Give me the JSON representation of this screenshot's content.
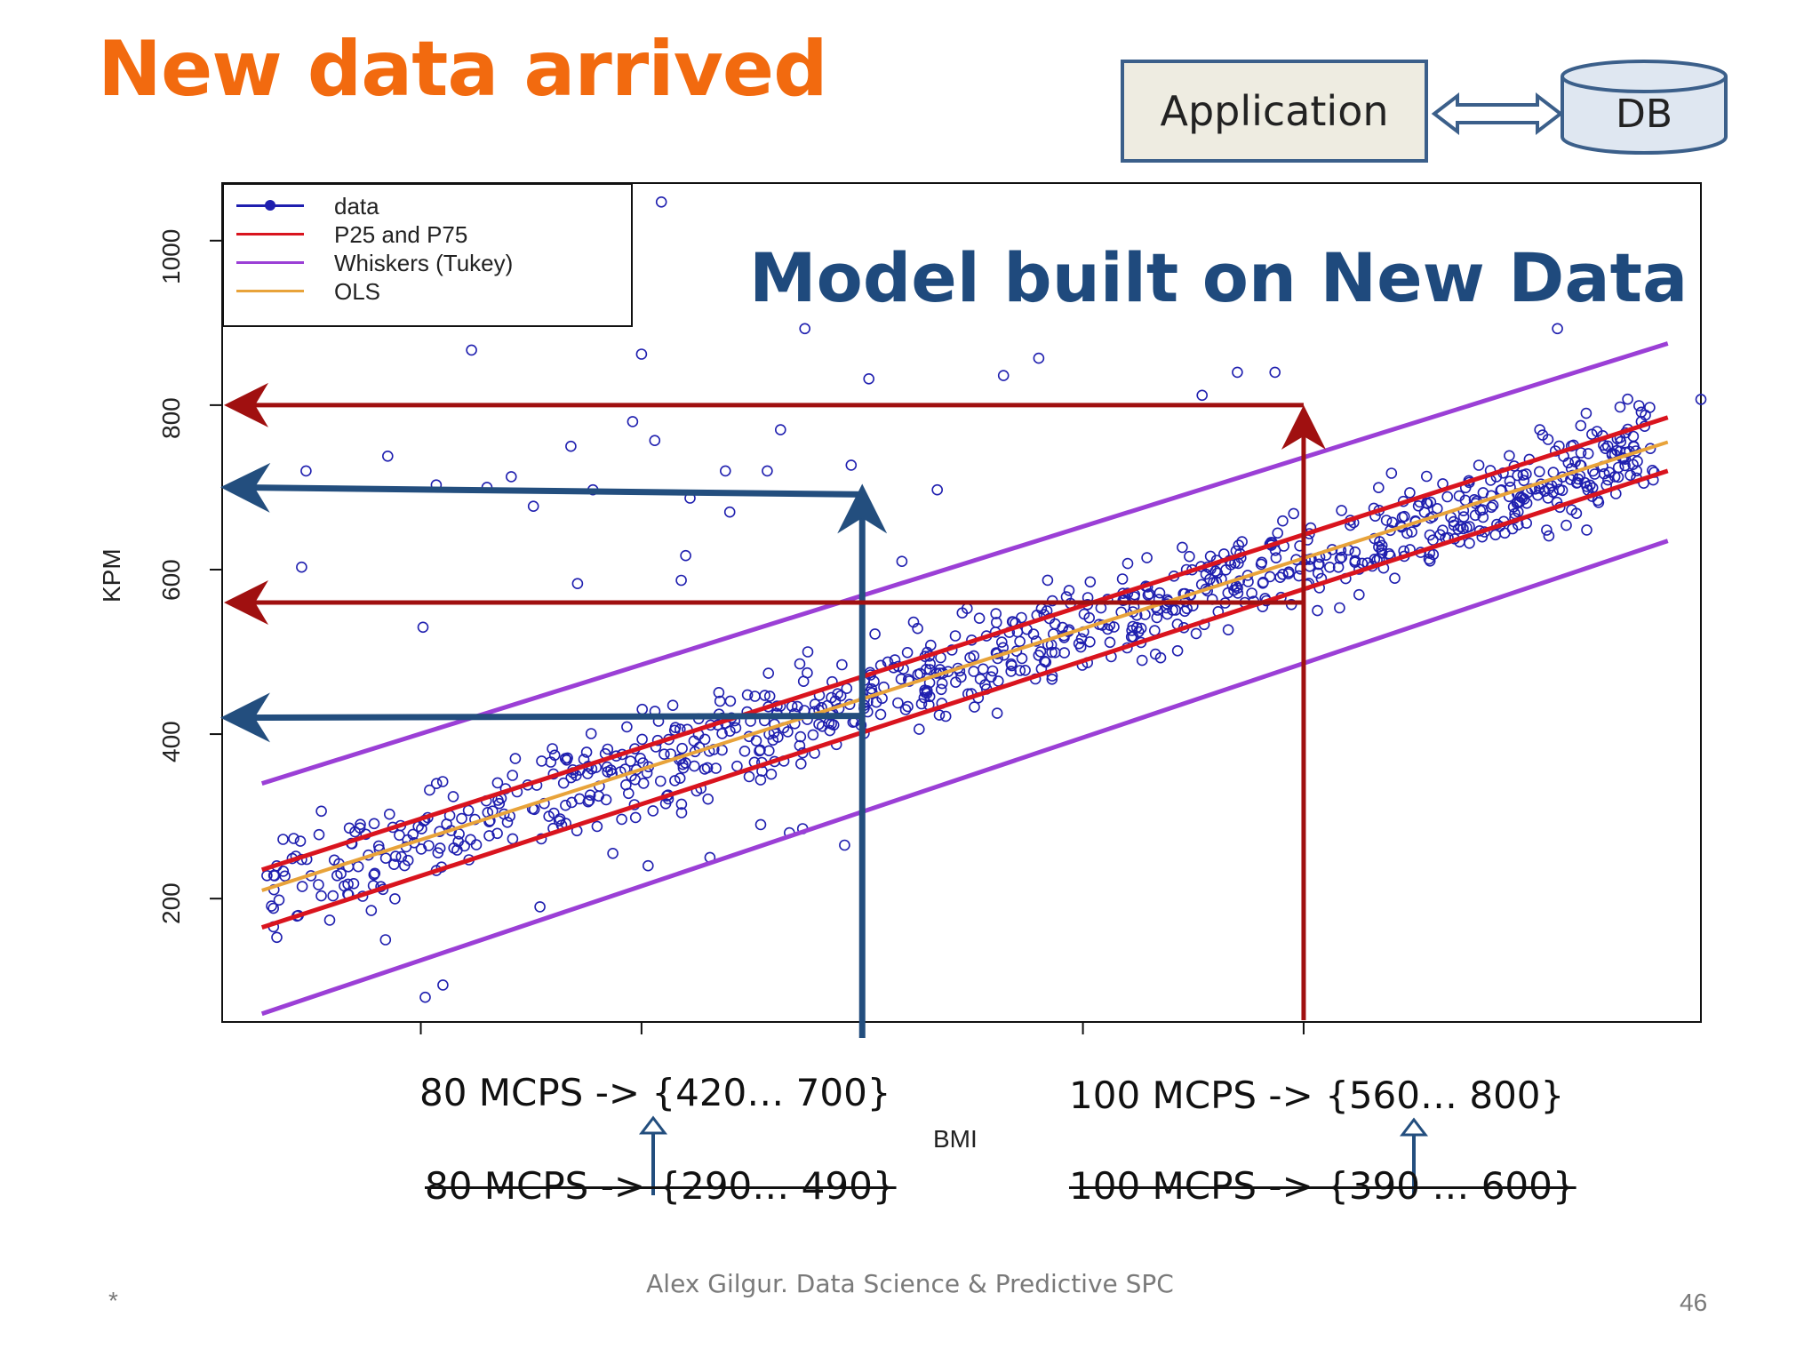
{
  "slide": {
    "title": "New data arrived",
    "overlay_title": "Model built on New Data",
    "footer": "Alex Gilgur.  Data Science & Predictive SPC",
    "page_number": "46",
    "star": "*"
  },
  "diagram": {
    "application_label": "Application",
    "db_label": "DB"
  },
  "annotations": {
    "new_80": "80 MCPS -> {420… 700}",
    "new_100": "100 MCPS -> {560… 800}",
    "old_80": "80 MCPS -> {290… 490}",
    "old_100": "100 MCPS -> {390 … 600}"
  },
  "colors": {
    "title": "#f26a0f",
    "points": "#1f1faf",
    "quartile_lines": "#d9141e",
    "whiskers": "#9b3fd6",
    "ols": "#e8a33a",
    "red_arrows": "#a01010",
    "blue_arrows": "#234e7e"
  },
  "chart_data": {
    "type": "scatter",
    "title": "",
    "xlabel": "BMI",
    "ylabel": "KPM",
    "xlim": [
      51,
      118
    ],
    "ylim": [
      50,
      1070
    ],
    "y_ticks": [
      200,
      400,
      600,
      800,
      1000
    ],
    "x_ticks": [
      60,
      70,
      80,
      90,
      100
    ],
    "x_tick_labels_visible": false,
    "legend": [
      {
        "name": "data",
        "color": "#1f1faf",
        "marker": "circle"
      },
      {
        "name": "P25 and P75",
        "color": "#d9141e"
      },
      {
        "name": "Whiskers (Tukey)",
        "color": "#9b3fd6"
      },
      {
        "name": "OLS",
        "color": "#e8a33a"
      }
    ],
    "lines": [
      {
        "name": "P75",
        "color": "#d9141e",
        "x": [
          52.8,
          116.5
        ],
        "y": [
          235,
          785
        ]
      },
      {
        "name": "P25",
        "color": "#d9141e",
        "x": [
          52.8,
          116.5
        ],
        "y": [
          165,
          720
        ]
      },
      {
        "name": "Whisker upper",
        "color": "#9b3fd6",
        "x": [
          52.8,
          116.5
        ],
        "y": [
          340,
          875
        ]
      },
      {
        "name": "Whisker lower",
        "color": "#9b3fd6",
        "x": [
          52.8,
          116.5
        ],
        "y": [
          60,
          635
        ]
      },
      {
        "name": "OLS",
        "color": "#e8a33a",
        "x": [
          52.8,
          116.5
        ],
        "y": [
          210,
          755
        ]
      }
    ],
    "guides": [
      {
        "name": "80 MCPS",
        "x": 80,
        "low": 420,
        "high": 700,
        "color": "#234e7e"
      },
      {
        "name": "100 MCPS",
        "x": 100,
        "low": 560,
        "high": 800,
        "color": "#a01010"
      }
    ],
    "outliers": [
      [
        70.9,
        1047
      ],
      [
        62.3,
        867
      ],
      [
        70.0,
        862
      ],
      [
        86.4,
        836
      ],
      [
        77.4,
        893
      ],
      [
        88.0,
        857
      ],
      [
        80.3,
        832
      ],
      [
        97.0,
        840
      ],
      [
        95.4,
        812
      ],
      [
        98.7,
        840
      ],
      [
        111.5,
        893
      ],
      [
        58.5,
        738
      ],
      [
        54.8,
        720
      ],
      [
        60.7,
        703
      ],
      [
        63.0,
        700
      ],
      [
        66.8,
        750
      ],
      [
        64.1,
        713
      ],
      [
        67.8,
        697
      ],
      [
        70.6,
        757
      ],
      [
        65.1,
        677
      ],
      [
        69.6,
        780
      ],
      [
        72.2,
        687
      ],
      [
        73.8,
        720
      ],
      [
        76.3,
        770
      ],
      [
        75.7,
        720
      ],
      [
        79.5,
        727
      ],
      [
        83.4,
        697
      ],
      [
        54.6,
        603
      ],
      [
        67.1,
        583
      ],
      [
        71.8,
        587
      ],
      [
        72.0,
        617
      ],
      [
        60.1,
        530
      ],
      [
        74.0,
        670
      ],
      [
        81.8,
        610
      ],
      [
        58.4,
        150
      ],
      [
        60.2,
        80
      ],
      [
        61.0,
        95
      ],
      [
        65.4,
        190
      ],
      [
        70.3,
        240
      ],
      [
        76.7,
        280
      ],
      [
        77.3,
        285
      ],
      [
        79.2,
        265
      ],
      [
        68.7,
        255
      ],
      [
        73.1,
        250
      ],
      [
        75.4,
        290
      ],
      [
        112.8,
        790
      ],
      [
        114.1,
        740
      ],
      [
        115.3,
        780
      ],
      [
        118.0,
        807
      ],
      [
        110.7,
        770
      ]
    ]
  }
}
